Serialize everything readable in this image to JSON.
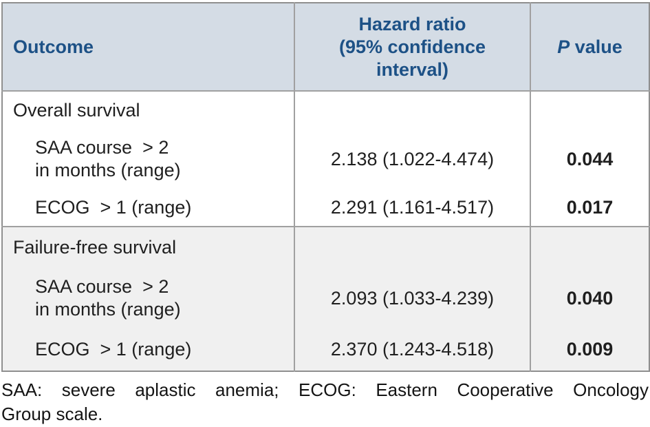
{
  "colors": {
    "header_bg": "#d4dce5",
    "header_text": "#1d5186",
    "alt_section_bg": "#f0f0f0",
    "grid_border": "#a0a0a0",
    "body_text": "#1f1f1f"
  },
  "table": {
    "headers": {
      "outcome": "Outcome",
      "hazard_ratio": "Hazard ratio\n(95% confidence\ninterval)",
      "p_value_italic": "P",
      "p_value_rest": " value"
    },
    "sections": [
      {
        "title": "Overall survival",
        "rows": [
          {
            "outcome": "SAA course  > 2\nin months (range)",
            "hazard_ratio": "2.138 (1.022-4.474)",
            "p_value": "0.044"
          },
          {
            "outcome": "ECOG  > 1 (range)",
            "hazard_ratio": "2.291 (1.161-4.517)",
            "p_value": "0.017"
          }
        ]
      },
      {
        "title": "Failure-free survival",
        "rows": [
          {
            "outcome": "SAA course  > 2\nin months (range)",
            "hazard_ratio": "2.093 (1.033-4.239)",
            "p_value": "0.040"
          },
          {
            "outcome": "ECOG  > 1 (range)",
            "hazard_ratio": "2.370 (1.243-4.518)",
            "p_value": "0.009"
          }
        ]
      }
    ]
  },
  "footnote": {
    "line1": "SAA: severe aplastic anemia; ECOG: Eastern Cooperative Oncology",
    "line2": "Group scale."
  }
}
